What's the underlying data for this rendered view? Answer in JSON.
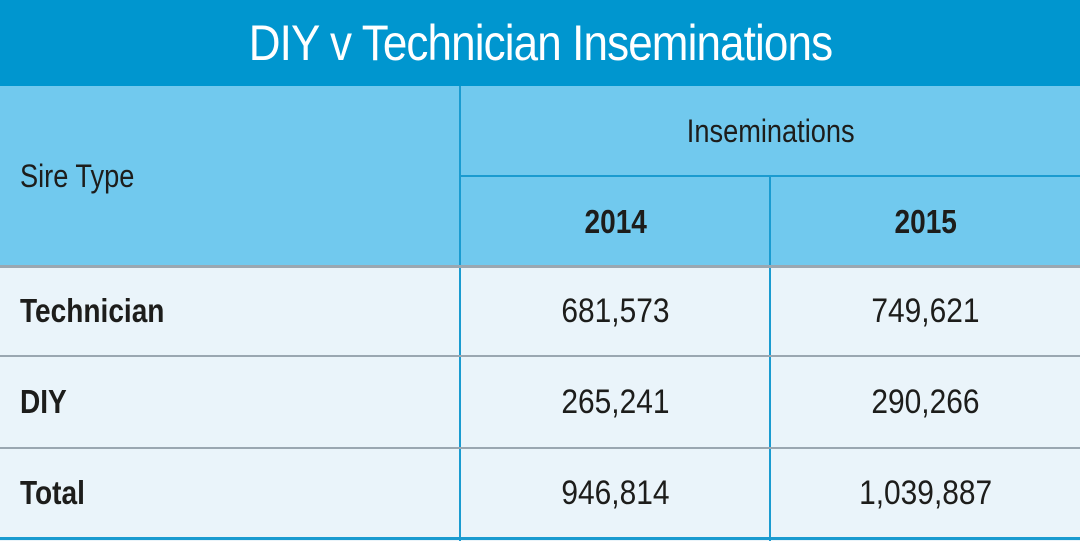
{
  "title": "DIY v Technician Inseminations",
  "colors": {
    "title_bar": "#0096cf",
    "header_bg": "#71c9ee",
    "body_bg": "#eaf4fa",
    "grid_line": "#1a9bd0",
    "row_separator": "#9aa7b1",
    "text": "#1d1d1b"
  },
  "chart_data": {
    "type": "table",
    "title": "DIY v Technician Inseminations",
    "row_header": "Sire Type",
    "group_header": "Inseminations",
    "columns": [
      "2014",
      "2015"
    ],
    "rows": [
      {
        "label": "Technician",
        "values": [
          "681,573",
          "749,621"
        ]
      },
      {
        "label": "DIY",
        "values": [
          "265,241",
          "290,266"
        ]
      },
      {
        "label": "Total",
        "values": [
          "946,814",
          "1,039,887"
        ]
      }
    ]
  }
}
